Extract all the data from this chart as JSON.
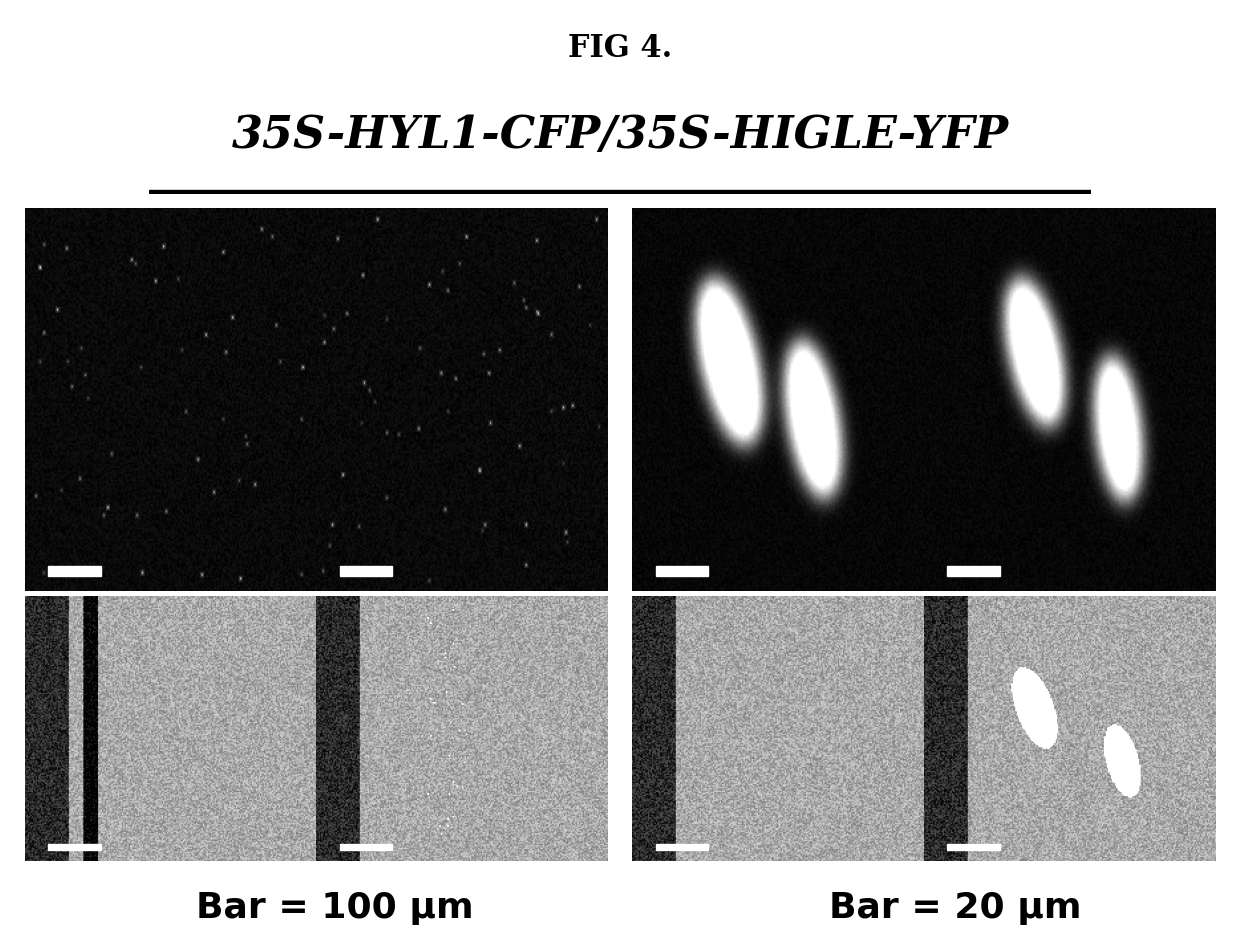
{
  "fig_title": "FIG 4.",
  "subtitle": "35S-HYL1-CFP/35S-HIGLE-YFP",
  "bar_label_left": "Bar = 100 μm",
  "bar_label_right": "Bar = 20 μm",
  "bg_color": "#ffffff",
  "title_fontsize": 22,
  "subtitle_fontsize": 32,
  "bar_label_fontsize": 26,
  "fig_width": 12.4,
  "fig_height": 9.46
}
